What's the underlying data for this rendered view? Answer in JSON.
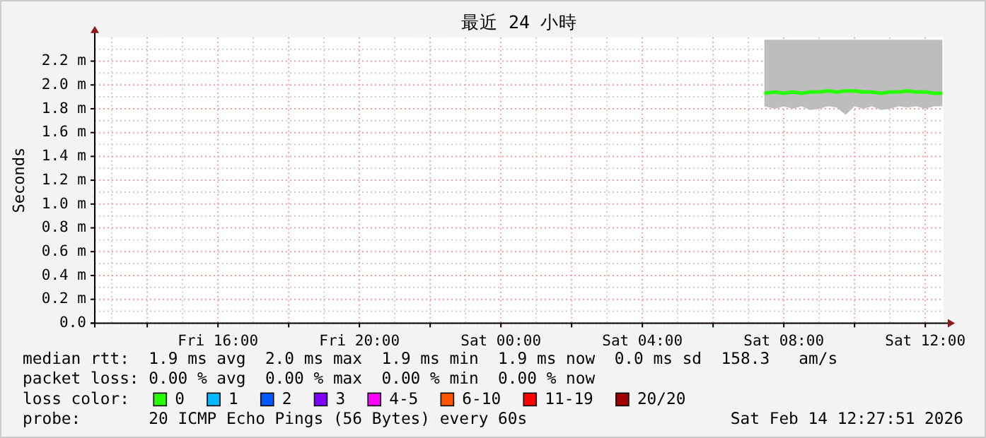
{
  "chart_data": {
    "type": "line",
    "title": "最近 24 小時",
    "ylabel": "Seconds",
    "xlim": [
      "2026-02-13T12:31",
      "2026-02-14T12:31"
    ],
    "xticks": [
      {
        "value": "2026-02-13T14:00",
        "label": null
      },
      {
        "value": "2026-02-13T16:00",
        "label": "Fri 16:00"
      },
      {
        "value": "2026-02-13T18:00",
        "label": null
      },
      {
        "value": "2026-02-13T20:00",
        "label": "Fri 20:00"
      },
      {
        "value": "2026-02-13T22:00",
        "label": null
      },
      {
        "value": "2026-02-14T00:00",
        "label": "Sat 00:00"
      },
      {
        "value": "2026-02-14T02:00",
        "label": null
      },
      {
        "value": "2026-02-14T04:00",
        "label": "Sat 04:00"
      },
      {
        "value": "2026-02-14T06:00",
        "label": null
      },
      {
        "value": "2026-02-14T08:00",
        "label": "Sat 08:00"
      },
      {
        "value": "2026-02-14T10:00",
        "label": null
      },
      {
        "value": "2026-02-14T12:00",
        "label": "Sat 12:00"
      }
    ],
    "ylim": [
      0,
      2.4
    ],
    "yticks": [
      {
        "value": 0,
        "label": "0.0"
      },
      {
        "value": 0.2,
        "label": "0.2 m"
      },
      {
        "value": 0.4,
        "label": "0.4 m"
      },
      {
        "value": 0.6,
        "label": "0.6 m"
      },
      {
        "value": 0.8,
        "label": "0.8 m"
      },
      {
        "value": 1.0,
        "label": "1.0 m"
      },
      {
        "value": 1.2,
        "label": "1.2 m"
      },
      {
        "value": 1.4,
        "label": "1.4 m"
      },
      {
        "value": 1.6,
        "label": "1.6 m"
      },
      {
        "value": 1.8,
        "label": "1.8 m"
      },
      {
        "value": 2.0,
        "label": "2.0 m"
      },
      {
        "value": 2.2,
        "label": "2.2 m"
      }
    ],
    "grid": true,
    "legend": "bottom",
    "legend_title": "loss color:",
    "marker": "none",
    "line_style": "solid",
    "x": [
      "2026-02-14T07:27",
      "2026-02-14T07:45",
      "2026-02-14T08:00",
      "2026-02-14T08:15",
      "2026-02-14T08:30",
      "2026-02-14T08:45",
      "2026-02-14T09:00",
      "2026-02-14T09:15",
      "2026-02-14T09:30",
      "2026-02-14T09:45",
      "2026-02-14T10:00",
      "2026-02-14T10:15",
      "2026-02-14T10:30",
      "2026-02-14T10:45",
      "2026-02-14T11:00",
      "2026-02-14T11:15",
      "2026-02-14T11:30",
      "2026-02-14T11:45",
      "2026-02-14T12:00",
      "2026-02-14T12:15",
      "2026-02-14T12:29"
    ],
    "series": [
      {
        "name": "0",
        "color": "#26ff00",
        "values": [
          1.93,
          1.94,
          1.93,
          1.94,
          1.93,
          1.94,
          1.94,
          1.95,
          1.94,
          1.95,
          1.95,
          1.94,
          1.94,
          1.93,
          1.94,
          1.94,
          1.95,
          1.94,
          1.94,
          1.93,
          1.93
        ],
        "lower": [
          1.82,
          1.8,
          1.82,
          1.8,
          1.82,
          1.79,
          1.8,
          1.82,
          1.81,
          1.75,
          1.82,
          1.8,
          1.82,
          1.79,
          1.8,
          1.82,
          1.81,
          1.82,
          1.8,
          1.82,
          1.82
        ],
        "upper": [
          2.38,
          2.38,
          2.38,
          2.38,
          2.38,
          2.38,
          2.38,
          2.38,
          2.38,
          2.38,
          2.38,
          2.38,
          2.38,
          2.38,
          2.38,
          2.38,
          2.38,
          2.38,
          2.38,
          2.38,
          2.38
        ]
      },
      {
        "name": "1",
        "color": "#00b8ff",
        "values": [
          null,
          null,
          null,
          null,
          null,
          null,
          null,
          null,
          null,
          null,
          null,
          null,
          null,
          null,
          null,
          null,
          null,
          null,
          null,
          null,
          null
        ]
      },
      {
        "name": "2",
        "color": "#0059ff",
        "values": [
          null,
          null,
          null,
          null,
          null,
          null,
          null,
          null,
          null,
          null,
          null,
          null,
          null,
          null,
          null,
          null,
          null,
          null,
          null,
          null,
          null
        ]
      },
      {
        "name": "3",
        "color": "#7e00ff",
        "values": [
          null,
          null,
          null,
          null,
          null,
          null,
          null,
          null,
          null,
          null,
          null,
          null,
          null,
          null,
          null,
          null,
          null,
          null,
          null,
          null,
          null
        ]
      },
      {
        "name": "4-5",
        "color": "#ff00ff",
        "values": [
          null,
          null,
          null,
          null,
          null,
          null,
          null,
          null,
          null,
          null,
          null,
          null,
          null,
          null,
          null,
          null,
          null,
          null,
          null,
          null,
          null
        ]
      },
      {
        "name": "6-10",
        "color": "#ff5500",
        "values": [
          null,
          null,
          null,
          null,
          null,
          null,
          null,
          null,
          null,
          null,
          null,
          null,
          null,
          null,
          null,
          null,
          null,
          null,
          null,
          null,
          null
        ]
      },
      {
        "name": "11-19",
        "color": "#ff0000",
        "values": [
          null,
          null,
          null,
          null,
          null,
          null,
          null,
          null,
          null,
          null,
          null,
          null,
          null,
          null,
          null,
          null,
          null,
          null,
          null,
          null,
          null
        ]
      },
      {
        "name": "20/20",
        "color": "#a10000",
        "values": [
          null,
          null,
          null,
          null,
          null,
          null,
          null,
          null,
          null,
          null,
          null,
          null,
          null,
          null,
          null,
          null,
          null,
          null,
          null,
          null,
          null
        ]
      }
    ],
    "annotations": [
      "median rtt:  1.9 ms avg  2.0 ms max  1.9 ms min  1.9 ms now  0.0 ms sd  158.3   am/s",
      "packet loss: 0.00 % avg  0.00 % max  0.00 % min  0.00 % now",
      "probe:       20 ICMP Echo Pings (56 Bytes) every 60s",
      "Sat Feb 14 12:27:51 2026"
    ]
  }
}
